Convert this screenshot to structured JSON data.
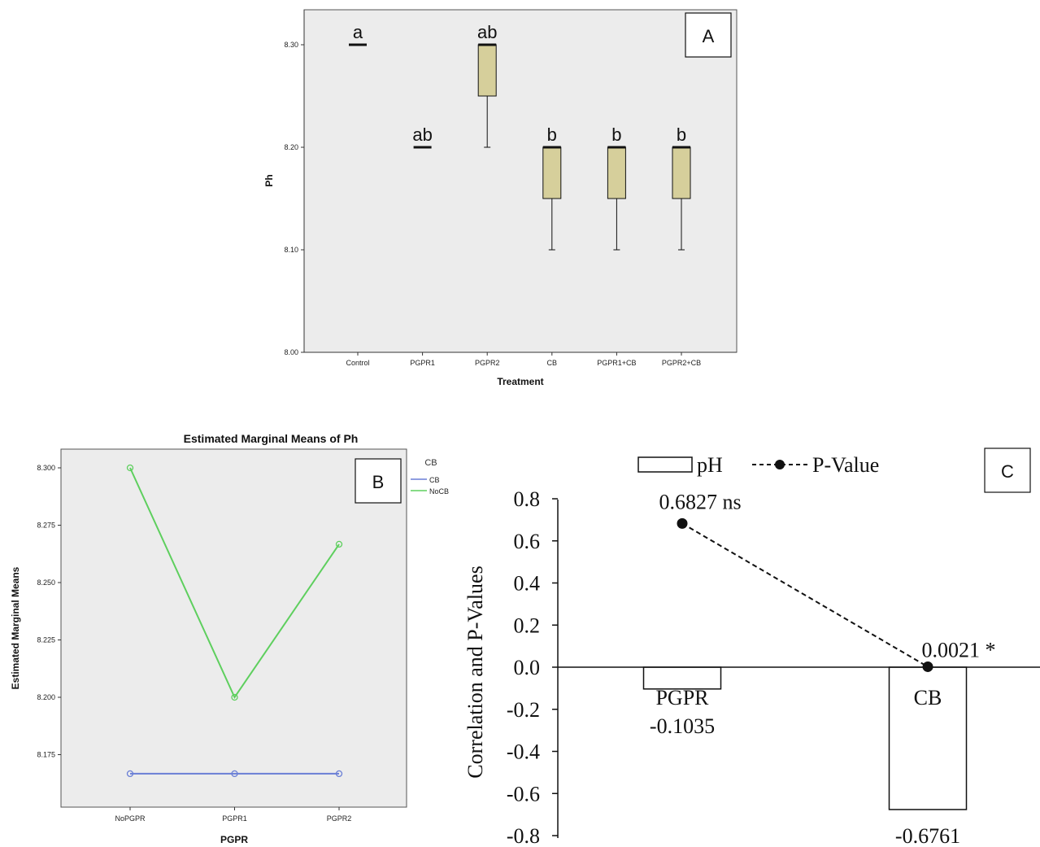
{
  "chart_data": [
    {
      "type": "box",
      "panel_label": "A",
      "xlabel": "Treatment",
      "ylabel": "Ph",
      "ylim": [
        8.0,
        8.3
      ],
      "yticks": [
        "8.00",
        "8.10",
        "8.20",
        "8.30"
      ],
      "categories": [
        "Control",
        "PGPR1",
        "PGPR2",
        "CB",
        "PGPR1+CB",
        "PGPR2+CB"
      ],
      "boxes": [
        {
          "q1": 8.3,
          "median": 8.3,
          "q3": 8.3,
          "min": 8.3,
          "max": 8.3,
          "letter": "a"
        },
        {
          "q1": 8.2,
          "median": 8.2,
          "q3": 8.2,
          "min": 8.2,
          "max": 8.2,
          "letter": "ab"
        },
        {
          "q1": 8.25,
          "median": 8.3,
          "q3": 8.3,
          "min": 8.2,
          "max": 8.3,
          "letter": "ab"
        },
        {
          "q1": 8.15,
          "median": 8.2,
          "q3": 8.2,
          "min": 8.1,
          "max": 8.2,
          "letter": "b"
        },
        {
          "q1": 8.15,
          "median": 8.2,
          "q3": 8.2,
          "min": 8.1,
          "max": 8.2,
          "letter": "b"
        },
        {
          "q1": 8.15,
          "median": 8.2,
          "q3": 8.2,
          "min": 8.1,
          "max": 8.2,
          "letter": "b"
        }
      ],
      "colors": {
        "box_fill": "#d6cf9b",
        "background": "#ececec"
      }
    },
    {
      "type": "line",
      "panel_label": "B",
      "title": "Estimated Marginal Means of Ph",
      "xlabel": "PGPR",
      "ylabel": "Estimated Marginal Means",
      "categories": [
        "NoPGPR",
        "PGPR1",
        "PGPR2"
      ],
      "ylim": [
        8.16,
        8.31
      ],
      "yticks": [
        "8.175",
        "8.200",
        "8.225",
        "8.250",
        "8.275",
        "8.300"
      ],
      "legend_title": "CB",
      "series": [
        {
          "name": "CB",
          "values": [
            8.1667,
            8.1667,
            8.1667
          ],
          "color": "#6a7fd6"
        },
        {
          "name": "NoCB",
          "values": [
            8.3,
            8.2,
            8.2667
          ],
          "color": "#5ecf5e"
        }
      ],
      "colors": {
        "background": "#ececec"
      }
    },
    {
      "type": "bar",
      "panel_label": "C",
      "ylabel": "Correlation and P-Values",
      "ylim": [
        -0.8,
        0.8
      ],
      "yticks": [
        "0.8",
        "0.6",
        "0.4",
        "0.2",
        "0.0",
        "-0.2",
        "-0.4",
        "-0.6",
        "-0.8"
      ],
      "categories": [
        "PGPR",
        "CB"
      ],
      "legend": {
        "bar": "pH",
        "line": "P-Value"
      },
      "series": [
        {
          "name": "pH",
          "values": [
            -0.1035,
            -0.6761
          ],
          "labels": [
            "-0.1035",
            "-0.6761"
          ]
        },
        {
          "name": "P-Value",
          "values": [
            0.6827,
            0.0021
          ],
          "labels": [
            "0.6827 ns",
            "0.0021 *"
          ]
        }
      ]
    }
  ]
}
